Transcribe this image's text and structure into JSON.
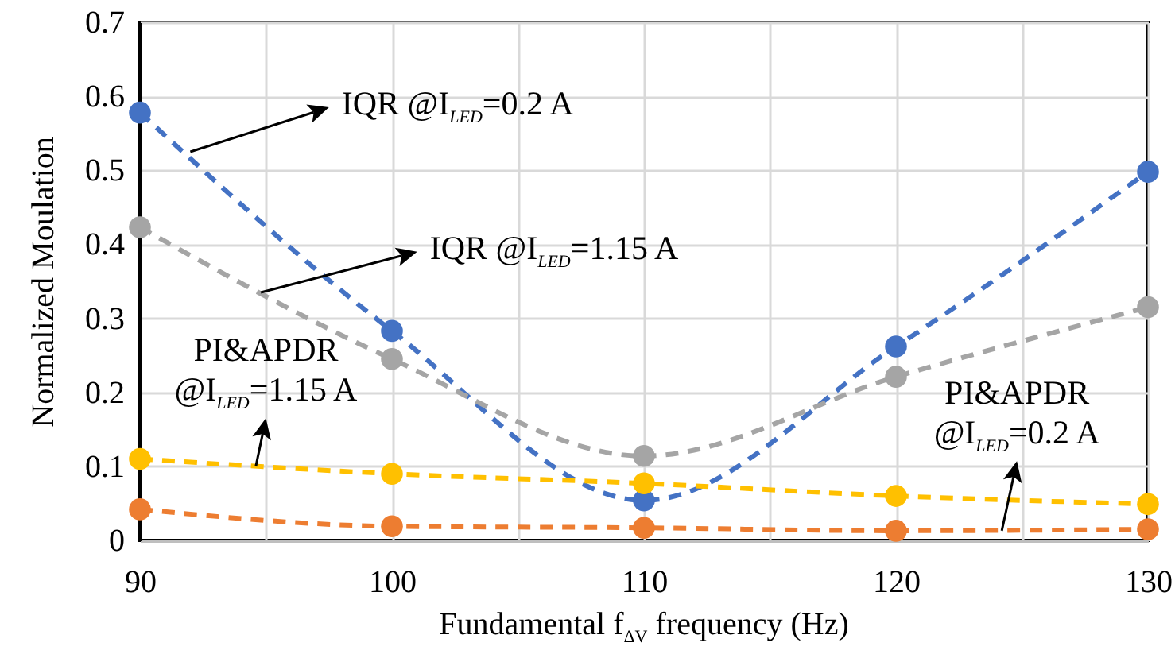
{
  "chart_data": {
    "type": "line",
    "xlabel": "Fundamental f$_{ΔV}$ frequency (Hz)",
    "ylabel": "Normalized Moulation",
    "x": [
      90,
      100,
      110,
      120,
      130
    ],
    "series": [
      {
        "color": "#4472c4",
        "values": [
          0.578,
          0.283,
          0.054,
          0.262,
          0.498
        ]
      },
      {
        "color": "#a5a5a5",
        "values": [
          0.423,
          0.245,
          0.114,
          0.221,
          0.315
        ]
      },
      {
        "color": "#ffc000",
        "values": [
          0.11,
          0.09,
          0.077,
          0.06,
          0.049
        ]
      },
      {
        "color": "#ed7d31",
        "values": [
          0.042,
          0.019,
          0.017,
          0.013,
          0.015
        ]
      }
    ],
    "xlim": [
      90,
      130
    ],
    "xticks": [
      90,
      {
        "value": 95,
        "label": null
      },
      100,
      {
        "value": 105,
        "label": null
      },
      110,
      {
        "value": 115,
        "label": null
      },
      120,
      {
        "value": 125,
        "label": null
      },
      130
    ],
    "ylim": [
      0,
      0.7
    ],
    "yticks": [
      0,
      0.1,
      0.2,
      0.3,
      0.4,
      0.5,
      0.6,
      0.7
    ],
    "grid": true,
    "marker": "circle",
    "line_style": "dashed",
    "annotations": [
      {
        "text": "IQR @I$_{LED}$=0.2 A",
        "x": 92,
        "y": 0.525
      },
      {
        "text": "IQR @I$_{LED}$=1.15 A",
        "x": 94.8,
        "y": 0.335
      },
      {
        "text": "PI&APDR\n@I$_{LED}$=1.15 A",
        "x": 94.6,
        "y": 0.1
      },
      {
        "text": "PI&APDR\n@I$_{LED}$=0.2 A",
        "x": 124.2,
        "y": 0.013
      }
    ]
  }
}
